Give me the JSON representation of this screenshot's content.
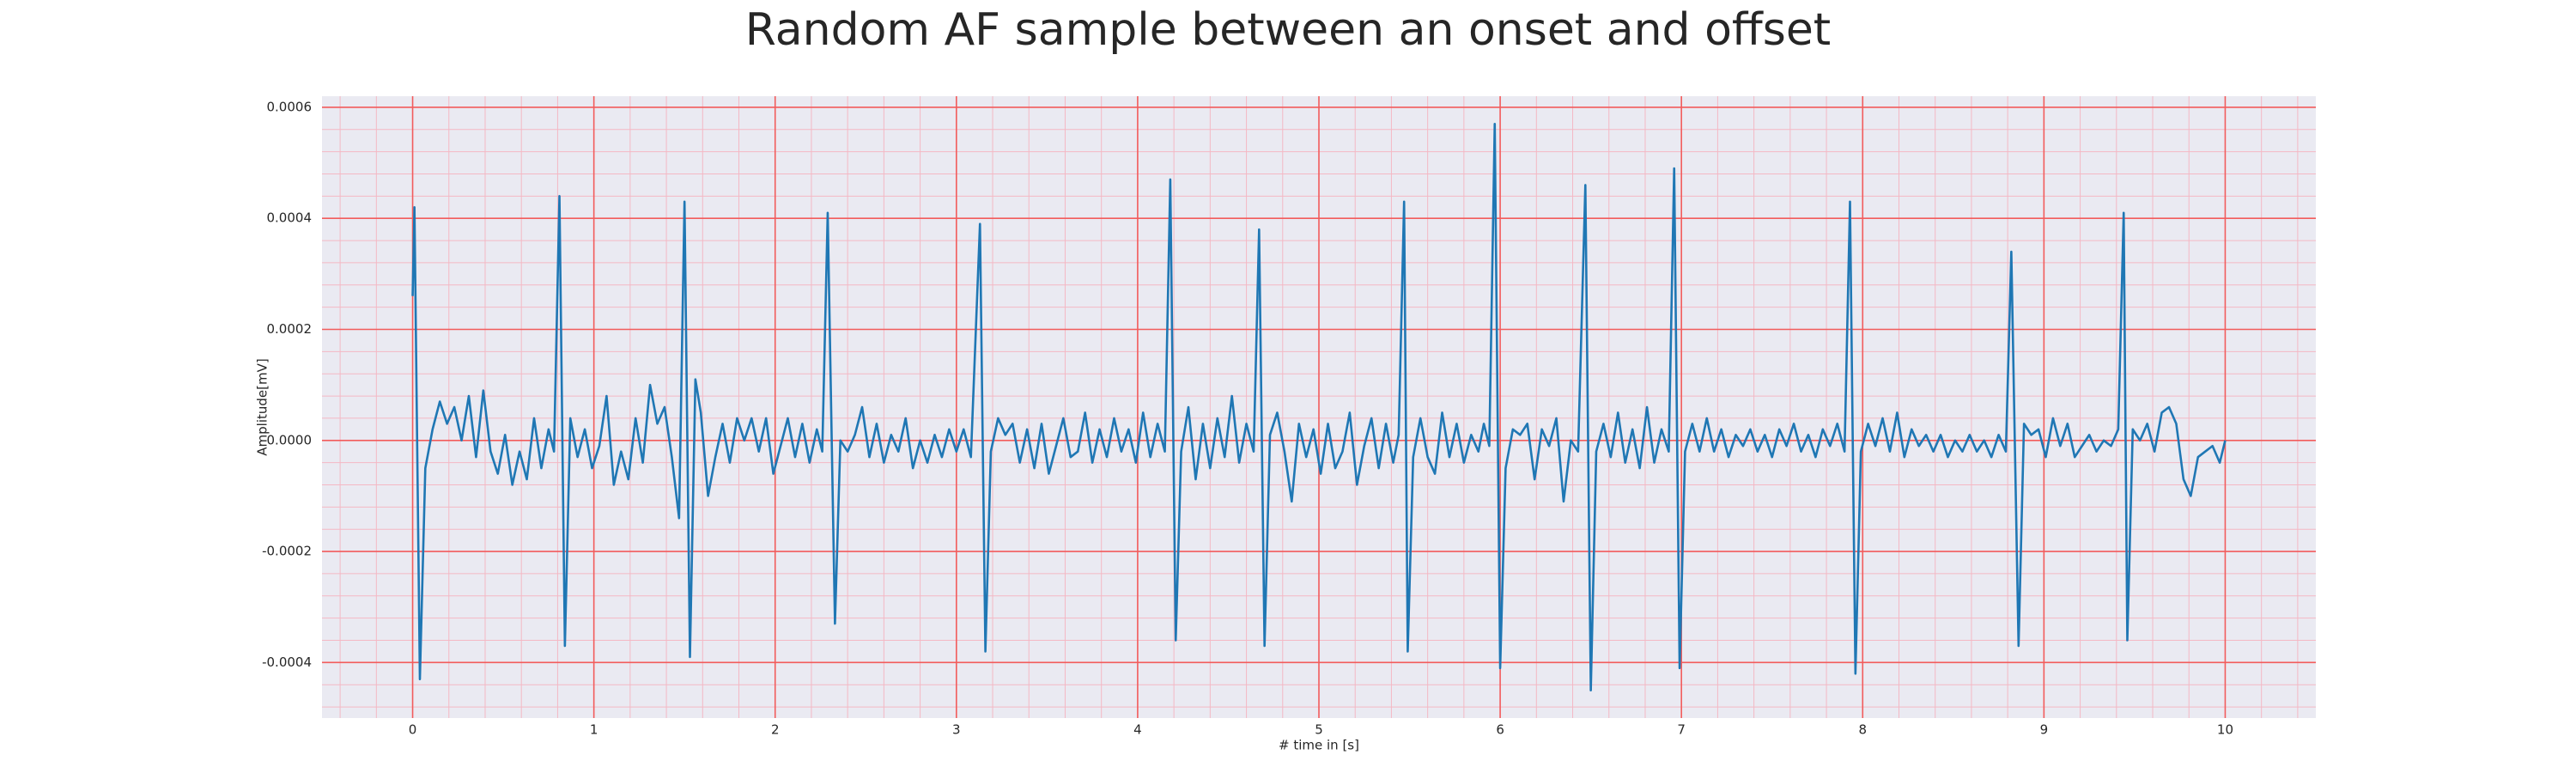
{
  "chart_data": {
    "type": "line",
    "title": "Random AF sample between an onset and offset",
    "xlabel": "# time in [s]",
    "ylabel": "Amplitude[mV]",
    "x": [
      0,
      0.01,
      0.04,
      0.07,
      0.11,
      0.15,
      0.19,
      0.23,
      0.27,
      0.31,
      0.35,
      0.39,
      0.43,
      0.47,
      0.51,
      0.55,
      0.59,
      0.63,
      0.67,
      0.71,
      0.75,
      0.78,
      0.81,
      0.84,
      0.87,
      0.91,
      0.95,
      0.99,
      1.03,
      1.07,
      1.11,
      1.15,
      1.19,
      1.23,
      1.27,
      1.31,
      1.35,
      1.39,
      1.43,
      1.47,
      1.5,
      1.53,
      1.56,
      1.59,
      1.63,
      1.67,
      1.71,
      1.75,
      1.79,
      1.83,
      1.87,
      1.91,
      1.95,
      1.99,
      2.03,
      2.07,
      2.11,
      2.15,
      2.19,
      2.23,
      2.26,
      2.29,
      2.33,
      2.36,
      2.4,
      2.44,
      2.48,
      2.52,
      2.56,
      2.6,
      2.64,
      2.68,
      2.72,
      2.76,
      2.8,
      2.84,
      2.88,
      2.92,
      2.96,
      3,
      3.04,
      3.08,
      3.13,
      3.16,
      3.19,
      3.23,
      3.27,
      3.31,
      3.35,
      3.39,
      3.43,
      3.47,
      3.51,
      3.55,
      3.59,
      3.63,
      3.67,
      3.71,
      3.75,
      3.79,
      3.83,
      3.87,
      3.91,
      3.95,
      3.99,
      4.03,
      4.07,
      4.11,
      4.15,
      4.18,
      4.21,
      4.24,
      4.28,
      4.32,
      4.36,
      4.4,
      4.44,
      4.48,
      4.52,
      4.56,
      4.6,
      4.64,
      4.67,
      4.7,
      4.73,
      4.77,
      4.81,
      4.85,
      4.89,
      4.93,
      4.97,
      5.01,
      5.05,
      5.09,
      5.13,
      5.17,
      5.21,
      5.25,
      5.29,
      5.33,
      5.37,
      5.41,
      5.44,
      5.47,
      5.49,
      5.52,
      5.56,
      5.6,
      5.64,
      5.68,
      5.72,
      5.76,
      5.8,
      5.84,
      5.88,
      5.91,
      5.94,
      5.97,
      6,
      6.03,
      6.07,
      6.11,
      6.15,
      6.19,
      6.23,
      6.27,
      6.31,
      6.35,
      6.39,
      6.43,
      6.47,
      6.5,
      6.53,
      6.57,
      6.61,
      6.65,
      6.69,
      6.73,
      6.77,
      6.81,
      6.85,
      6.89,
      6.93,
      6.96,
      6.99,
      7.02,
      7.06,
      7.1,
      7.14,
      7.18,
      7.22,
      7.26,
      7.3,
      7.34,
      7.38,
      7.42,
      7.46,
      7.5,
      7.54,
      7.58,
      7.62,
      7.66,
      7.7,
      7.74,
      7.78,
      7.82,
      7.86,
      7.9,
      7.93,
      7.96,
      7.99,
      8.03,
      8.07,
      8.11,
      8.15,
      8.19,
      8.23,
      8.27,
      8.31,
      8.35,
      8.39,
      8.43,
      8.47,
      8.51,
      8.55,
      8.59,
      8.63,
      8.67,
      8.71,
      8.75,
      8.79,
      8.82,
      8.86,
      8.89,
      8.93,
      8.97,
      9.01,
      9.05,
      9.09,
      9.13,
      9.17,
      9.21,
      9.25,
      9.29,
      9.33,
      9.37,
      9.41,
      9.44,
      9.46,
      9.49,
      9.53,
      9.57,
      9.61,
      9.65,
      9.69,
      9.73,
      9.77,
      9.81,
      9.85,
      9.89,
      9.93,
      9.97,
      10
    ],
    "values": [
      0.00026,
      0.00042,
      -0.00043,
      -5e-05,
      2e-05,
      7e-05,
      3e-05,
      6e-05,
      0,
      8e-05,
      -3e-05,
      9e-05,
      -2e-05,
      -6e-05,
      1e-05,
      -8e-05,
      -2e-05,
      -7e-05,
      4e-05,
      -5e-05,
      2e-05,
      -2e-05,
      0.00044,
      -0.00037,
      4e-05,
      -3e-05,
      2e-05,
      -5e-05,
      -1e-05,
      8e-05,
      -8e-05,
      -2e-05,
      -7e-05,
      4e-05,
      -4e-05,
      0.0001,
      3e-05,
      6e-05,
      -3e-05,
      -0.00014,
      0.00043,
      -0.00039,
      0.00011,
      5e-05,
      -0.0001,
      -3e-05,
      3e-05,
      -4e-05,
      4e-05,
      0,
      4e-05,
      -2e-05,
      4e-05,
      -6e-05,
      -1e-05,
      4e-05,
      -3e-05,
      3e-05,
      -4e-05,
      2e-05,
      -2e-05,
      0.00041,
      -0.00033,
      0,
      -2e-05,
      1e-05,
      6e-05,
      -3e-05,
      3e-05,
      -4e-05,
      1e-05,
      -2e-05,
      4e-05,
      -5e-05,
      0,
      -4e-05,
      1e-05,
      -3e-05,
      2e-05,
      -2e-05,
      2e-05,
      -3e-05,
      0.00039,
      -0.00038,
      -2e-05,
      4e-05,
      1e-05,
      3e-05,
      -4e-05,
      2e-05,
      -5e-05,
      3e-05,
      -6e-05,
      -1e-05,
      4e-05,
      -3e-05,
      -2e-05,
      5e-05,
      -4e-05,
      2e-05,
      -3e-05,
      4e-05,
      -2e-05,
      2e-05,
      -4e-05,
      5e-05,
      -3e-05,
      3e-05,
      -2e-05,
      0.00047,
      -0.00036,
      -2e-05,
      6e-05,
      -7e-05,
      3e-05,
      -5e-05,
      4e-05,
      -3e-05,
      8e-05,
      -4e-05,
      3e-05,
      -2e-05,
      0.00038,
      -0.00037,
      1e-05,
      5e-05,
      -2e-05,
      -0.00011,
      3e-05,
      -3e-05,
      2e-05,
      -6e-05,
      3e-05,
      -5e-05,
      -2e-05,
      5e-05,
      -8e-05,
      -1e-05,
      4e-05,
      -5e-05,
      3e-05,
      -4e-05,
      1e-05,
      0.00043,
      -0.00038,
      -3e-05,
      4e-05,
      -3e-05,
      -6e-05,
      5e-05,
      -3e-05,
      3e-05,
      -4e-05,
      1e-05,
      -2e-05,
      3e-05,
      -1e-05,
      0.00057,
      -0.00041,
      -5e-05,
      2e-05,
      1e-05,
      3e-05,
      -7e-05,
      2e-05,
      -1e-05,
      4e-05,
      -0.00011,
      0,
      -2e-05,
      0.00046,
      -0.00045,
      -2e-05,
      3e-05,
      -3e-05,
      5e-05,
      -4e-05,
      2e-05,
      -5e-05,
      6e-05,
      -4e-05,
      2e-05,
      -2e-05,
      0.00049,
      -0.00041,
      -2e-05,
      3e-05,
      -2e-05,
      4e-05,
      -2e-05,
      2e-05,
      -3e-05,
      1e-05,
      -1e-05,
      2e-05,
      -2e-05,
      1e-05,
      -3e-05,
      2e-05,
      -1e-05,
      3e-05,
      -2e-05,
      1e-05,
      -3e-05,
      2e-05,
      -1e-05,
      3e-05,
      -2e-05,
      0.00043,
      -0.00042,
      -2e-05,
      3e-05,
      -1e-05,
      4e-05,
      -2e-05,
      5e-05,
      -3e-05,
      2e-05,
      -1e-05,
      1e-05,
      -2e-05,
      1e-05,
      -3e-05,
      0,
      -2e-05,
      1e-05,
      -2e-05,
      0,
      -3e-05,
      1e-05,
      -2e-05,
      0.00034,
      -0.00037,
      3e-05,
      1e-05,
      2e-05,
      -3e-05,
      4e-05,
      -1e-05,
      3e-05,
      -3e-05,
      -1e-05,
      1e-05,
      -2e-05,
      0,
      -1e-05,
      2e-05,
      0.00041,
      -0.00036,
      2e-05,
      0,
      3e-05,
      -2e-05,
      5e-05,
      6e-05,
      3e-05,
      -7e-05,
      -0.0001,
      -3e-05,
      -2e-05,
      -1e-05,
      -4e-05,
      0
    ],
    "color": "#1f77b4",
    "xlim": [
      -0.5,
      10.5
    ],
    "ylim": [
      -0.0005,
      0.00062
    ],
    "xticks": [
      0,
      1,
      2,
      3,
      4,
      5,
      6,
      7,
      8,
      9,
      10
    ],
    "yticks": [
      -0.0004,
      -0.0002,
      {
        "value": 0,
        "label": "0.0000"
      },
      0.0002,
      0.0004,
      0.0006
    ],
    "grid": true,
    "minor_grid": true,
    "grid_color": "#f25c5c",
    "minor_grid_color": "#f4b8c4",
    "background": "#eaeaf2"
  }
}
